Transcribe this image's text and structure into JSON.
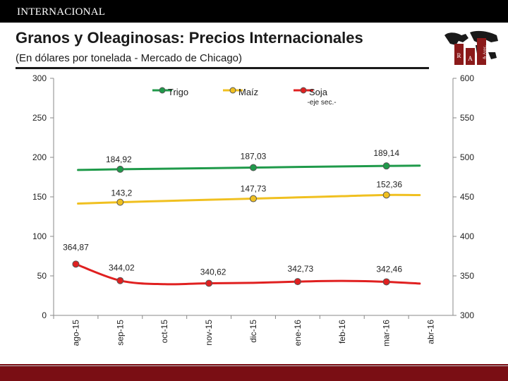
{
  "header": {
    "section_label": "INTERNACIONAL",
    "title": "Granos y Oleaginosas: Precios Internacionales",
    "subtitle": "(En dólares por tonelada - Mercado de Chicago)",
    "logo_letters": [
      "R",
      "A",
      "& Asoc."
    ]
  },
  "colors": {
    "trigo": "#1f9a4a",
    "maiz": "#f0c020",
    "soja": "#e02020",
    "topbar": "#000000",
    "bottombar": "#7a0e14"
  },
  "chart_data": {
    "type": "line",
    "title": "Granos y Oleaginosas: Precios Internacionales",
    "categories": [
      "ago-15",
      "sep-15",
      "oct-15",
      "nov-15",
      "dic-15",
      "ene-16",
      "feb-16",
      "mar-16",
      "abr-16"
    ],
    "y_left": {
      "range": [
        0,
        300
      ],
      "ticks": [
        "0",
        "50",
        "100",
        "150",
        "200",
        "250",
        "300"
      ]
    },
    "y_right": {
      "range": [
        300,
        600
      ],
      "ticks": [
        "300",
        "350",
        "400",
        "450",
        "500",
        "550",
        "600"
      ]
    },
    "legend": {
      "position": "top",
      "soja_note": "-eje sec.-"
    },
    "series": [
      {
        "name": "Trigo",
        "axis": "left",
        "values": [
          184,
          184.92,
          185.6,
          186.3,
          187.03,
          187.8,
          188.5,
          189.14,
          189.5
        ],
        "markers": [
          {
            "index": 1,
            "value": 184.92,
            "label": "184,92"
          },
          {
            "index": 4,
            "value": 187.03,
            "label": "187,03"
          },
          {
            "index": 7,
            "value": 189.14,
            "label": "189,14"
          }
        ]
      },
      {
        "name": "Maíz",
        "axis": "left",
        "values": [
          141.5,
          143.2,
          144.8,
          146.3,
          147.73,
          149.3,
          150.9,
          152.36,
          152.2
        ],
        "markers": [
          {
            "index": 1,
            "value": 143.2,
            "label": "143,2"
          },
          {
            "index": 4,
            "value": 147.73,
            "label": "147,73"
          },
          {
            "index": 7,
            "value": 152.36,
            "label": "152,36"
          }
        ]
      },
      {
        "name": "Soja",
        "axis": "right",
        "values": [
          364.87,
          344.02,
          339.5,
          340.62,
          341.2,
          342.73,
          343.6,
          342.46,
          340.3
        ],
        "markers": [
          {
            "index": 0,
            "value": 364.87,
            "label": "364,87"
          },
          {
            "index": 1,
            "value": 344.02,
            "label": "344,02"
          },
          {
            "index": 3,
            "value": 340.62,
            "label": "340,62"
          },
          {
            "index": 5,
            "value": 342.73,
            "label": "342,73"
          },
          {
            "index": 7,
            "value": 342.46,
            "label": "342,46"
          }
        ]
      }
    ]
  }
}
